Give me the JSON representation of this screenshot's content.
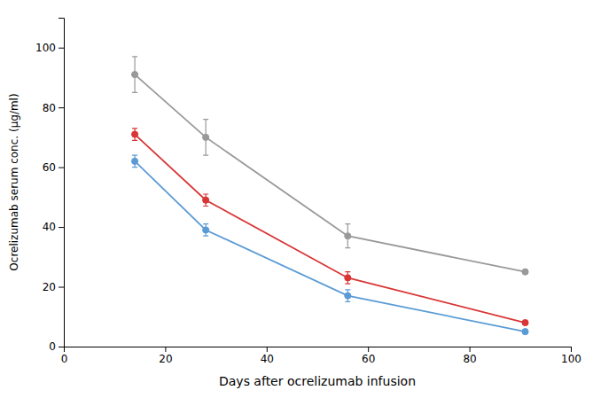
{
  "chart_data": {
    "type": "line",
    "xlabel": "Days after ocrelizumab infusion",
    "ylabel": "Ocrelizumab serum conc. (μg/ml)",
    "xlim": [
      0,
      100
    ],
    "ylim": [
      0,
      110
    ],
    "xticks": [
      0,
      20,
      40,
      60,
      80,
      100
    ],
    "yticks": [
      0,
      20,
      40,
      60,
      80,
      100
    ],
    "x": [
      14,
      28,
      56,
      91
    ],
    "marker": "circle",
    "grid": false,
    "series": [
      {
        "color": "#999999",
        "values": [
          91,
          70,
          37,
          25
        ],
        "yerr_lo": [
          6,
          6,
          4,
          0
        ],
        "yerr_hi": [
          6,
          6,
          4,
          0
        ]
      },
      {
        "color": "#d93535",
        "values": [
          71,
          49,
          23,
          8
        ],
        "yerr_lo": [
          2,
          2,
          2,
          0
        ],
        "yerr_hi": [
          2,
          2,
          2,
          0
        ]
      },
      {
        "color": "#5b9bd5",
        "values": [
          62,
          39,
          17,
          5
        ],
        "yerr_lo": [
          2,
          2,
          2,
          0
        ],
        "yerr_hi": [
          2,
          2,
          2,
          0
        ]
      }
    ]
  }
}
